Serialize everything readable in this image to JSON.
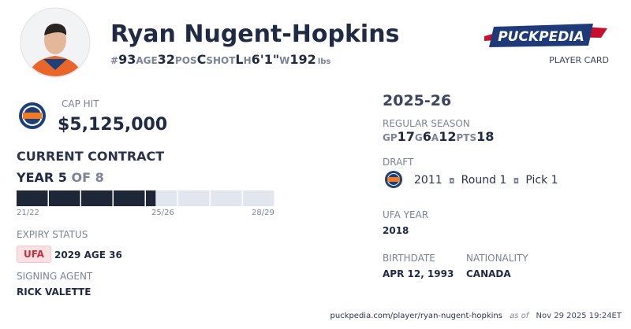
{
  "player": {
    "name": "Ryan Nugent-Hopkins",
    "stats": [
      {
        "label": "#",
        "value": "93"
      },
      {
        "label": "AGE",
        "value": "32"
      },
      {
        "label": "POS",
        "value": "C"
      },
      {
        "label": "SHOT",
        "value": "L"
      },
      {
        "label": "H",
        "value": "6'1\""
      },
      {
        "label": "W",
        "value": "192",
        "unit": "lbs"
      }
    ]
  },
  "brand": {
    "logo": "PUCKPEDIA",
    "subtitle": "PLAYER CARD"
  },
  "cap_hit": {
    "label": "CAP HIT",
    "value": "$5,125,000"
  },
  "contract": {
    "label": "CURRENT CONTRACT",
    "year_label": "YEAR",
    "year": 5,
    "of_label": "OF",
    "total_years": 8,
    "season_labels": [
      "21/22",
      "25/26",
      "28/29"
    ]
  },
  "expiry": {
    "label": "EXPIRY STATUS",
    "status": "UFA",
    "detail": "2029 AGE 36"
  },
  "agent": {
    "label": "SIGNING AGENT",
    "value": "RICK VALETTE"
  },
  "season": {
    "title": "2025-26",
    "label": "REGULAR SEASON",
    "stats": [
      {
        "label": "GP",
        "value": "17"
      },
      {
        "label": "G",
        "value": "6"
      },
      {
        "label": "A",
        "value": "12"
      },
      {
        "label": "PTS",
        "value": "18"
      }
    ]
  },
  "draft": {
    "label": "DRAFT",
    "year": "2011",
    "round": "Round 1",
    "pick": "Pick 1"
  },
  "ufa_year": {
    "label": "UFA YEAR",
    "value": "2018"
  },
  "birthdate": {
    "label": "BIRTHDATE",
    "value": "APR 12, 1993"
  },
  "nationality": {
    "label": "NATIONALITY",
    "value": "CANADA"
  },
  "footer": {
    "url": "puckpedia.com/player/ryan-nugent-hopkins",
    "as_of_label": "as of",
    "date": "Nov 29 2025 19:24ET"
  }
}
